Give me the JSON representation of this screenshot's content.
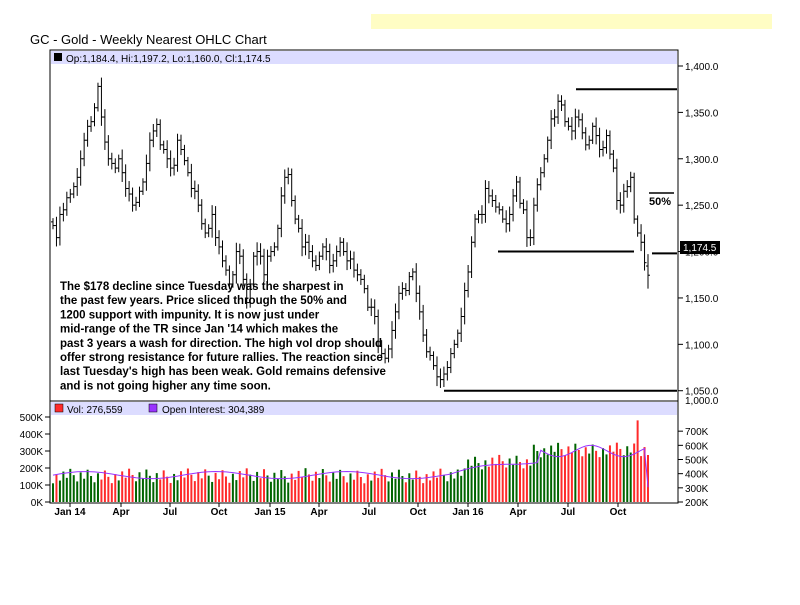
{
  "title": "GC - Gold - Weekly Nearest OHLC Chart",
  "header_bar_color": "#fffdc4",
  "price_panel": {
    "ohlc_label": "Op:1,184.4, Hi:1,197.2, Lo:1,160.0, Cl:1,174.5",
    "last_price_label": "1,174.5",
    "y_ticks": [
      "1,050.0",
      "1,100.0",
      "1,150.0",
      "1,200.0",
      "1,250.0",
      "1,300.0",
      "1,350.0",
      "1,400.0"
    ],
    "annotation_50pct": "50%",
    "commentary": [
      "The $178 decline since Tuesday was the sharpest in",
      "the past few years.  Price sliced through the 50% and",
      "1200 support with impunity.  It is now just under",
      "mid-range of the TR since Jan '14 which makes the",
      "past 3 years a wash for direction.  The high vol drop should",
      "offer strong resistance for future rallies.  The reaction since",
      "last Tuesday's high has been weak.  Gold remains defensive",
      "and is not going higher any time soon."
    ]
  },
  "volume_panel": {
    "vol_label": "Vol: 276,559",
    "oi_label": "Open Interest: 304,389",
    "vol_color": "#ff2a2a",
    "oi_color": "#9933ff",
    "left_ticks": [
      "0K",
      "100K",
      "200K",
      "300K",
      "400K",
      "500K"
    ],
    "right_ticks": [
      "200K",
      "300K",
      "400K",
      "500K",
      "600K",
      "700K"
    ]
  },
  "x_ticks": [
    "Jan 14",
    "Apr",
    "Jul",
    "Oct",
    "Jan 15",
    "Apr",
    "Jul",
    "Oct",
    "Jan 16",
    "Apr",
    "Jul",
    "Oct"
  ],
  "chart_data": {
    "type": "ohlc",
    "title": "GC - Gold - Weekly Nearest OHLC Chart",
    "price_ylim": [
      1040,
      1400
    ],
    "volume_ylim": [
      0,
      500000
    ],
    "open_interest_ylim": [
      200000,
      800000
    ],
    "x_tick_labels": [
      "Jan 14",
      "Apr",
      "Jul",
      "Oct",
      "Jan 15",
      "Apr",
      "Jul",
      "Oct",
      "Jan 16",
      "Apr",
      "Jul",
      "Oct"
    ],
    "last_bar": {
      "open": 1184.4,
      "high": 1197.2,
      "low": 1160.0,
      "close": 1174.5,
      "volume": 276559,
      "open_interest": 304389
    },
    "closes": [
      1228,
      1215,
      1240,
      1245,
      1258,
      1262,
      1270,
      1280,
      1300,
      1320,
      1335,
      1340,
      1355,
      1378,
      1345,
      1318,
      1300,
      1295,
      1290,
      1300,
      1285,
      1268,
      1262,
      1250,
      1253,
      1265,
      1275,
      1295,
      1320,
      1330,
      1337,
      1315,
      1310,
      1300,
      1290,
      1293,
      1320,
      1310,
      1298,
      1285,
      1268,
      1265,
      1250,
      1230,
      1220,
      1225,
      1240,
      1215,
      1205,
      1190,
      1180,
      1165,
      1175,
      1200,
      1195,
      1170,
      1145,
      1165,
      1195,
      1200,
      1195,
      1175,
      1195,
      1200,
      1205,
      1225,
      1260,
      1280,
      1283,
      1255,
      1235,
      1225,
      1205,
      1210,
      1200,
      1190,
      1185,
      1195,
      1205,
      1200,
      1185,
      1190,
      1200,
      1210,
      1200,
      1190,
      1192,
      1180,
      1175,
      1170,
      1160,
      1140,
      1140,
      1130,
      1098,
      1090,
      1085,
      1095,
      1115,
      1135,
      1155,
      1160,
      1158,
      1173,
      1178,
      1155,
      1135,
      1110,
      1092,
      1088,
      1077,
      1065,
      1062,
      1068,
      1075,
      1090,
      1100,
      1112,
      1130,
      1158,
      1178,
      1210,
      1235,
      1240,
      1240,
      1268,
      1260,
      1255,
      1248,
      1245,
      1235,
      1230,
      1240,
      1260,
      1275,
      1252,
      1245,
      1215,
      1215,
      1250,
      1272,
      1285,
      1300,
      1320,
      1343,
      1345,
      1362,
      1358,
      1340,
      1335,
      1330,
      1345,
      1342,
      1328,
      1315,
      1320,
      1335,
      1325,
      1310,
      1312,
      1325,
      1305,
      1290,
      1255,
      1250,
      1265,
      1270,
      1280,
      1235,
      1220,
      1210,
      1188,
      1174.5
    ],
    "horizontal_lines": [
      {
        "level": 1375,
        "label": ""
      },
      {
        "level": 1200,
        "label": ""
      },
      {
        "level": 1198,
        "label": "50%"
      },
      {
        "level": 1050,
        "label": ""
      }
    ],
    "series": [
      {
        "name": "Vol",
        "color": "#ff2a2a"
      },
      {
        "name": "Open Interest",
        "color": "#9933ff"
      }
    ],
    "grid": false
  }
}
